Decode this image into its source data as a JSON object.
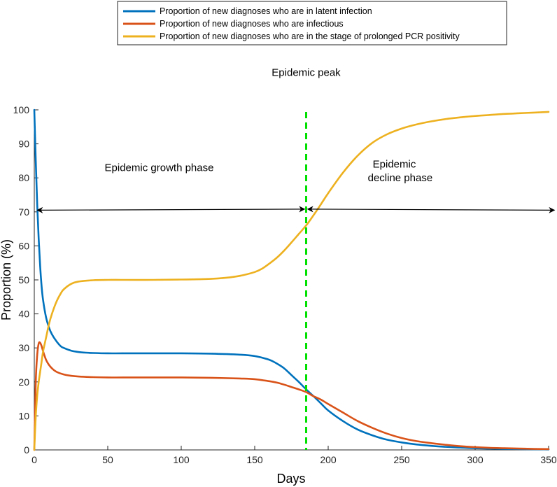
{
  "chart_data": {
    "type": "line",
    "xlabel": "Days",
    "ylabel": "Proportion (%)",
    "xlim": [
      0,
      350
    ],
    "ylim": [
      0,
      100
    ],
    "xticks": [
      0,
      50,
      100,
      150,
      200,
      250,
      300,
      350
    ],
    "yticks": [
      0,
      10,
      20,
      30,
      40,
      50,
      60,
      70,
      80,
      90,
      100
    ],
    "grid": false,
    "legend_position": "top",
    "series": [
      {
        "name": "Proportion of new diagnoses who are in latent infection",
        "color": "#0072BD",
        "x": [
          0,
          1,
          2,
          3,
          4,
          5,
          6,
          8,
          10,
          12,
          15,
          18,
          20,
          25,
          30,
          35,
          40,
          50,
          60,
          80,
          100,
          120,
          140,
          150,
          160,
          165,
          170,
          175,
          180,
          185,
          190,
          195,
          200,
          210,
          220,
          230,
          240,
          250,
          260,
          270,
          280,
          290,
          300,
          310,
          320,
          330,
          340,
          350
        ],
        "y": [
          100,
          85,
          72,
          62,
          54,
          48,
          44,
          39,
          36,
          34,
          32,
          30.5,
          30,
          29.2,
          28.8,
          28.6,
          28.5,
          28.4,
          28.4,
          28.4,
          28.4,
          28.3,
          28.0,
          27.6,
          26.5,
          25.4,
          24.0,
          22.0,
          20.0,
          17.8,
          15.8,
          13.7,
          11.6,
          8.5,
          6.0,
          4.3,
          3.0,
          2.2,
          1.6,
          1.2,
          0.9,
          0.7,
          0.5,
          0.4,
          0.3,
          0.25,
          0.2,
          0.15
        ]
      },
      {
        "name": "Proportion of new diagnoses who are infectious",
        "color": "#D95319",
        "x": [
          0,
          1,
          2,
          3,
          4,
          5,
          6,
          8,
          10,
          12,
          15,
          20,
          25,
          30,
          40,
          50,
          60,
          80,
          100,
          120,
          140,
          150,
          160,
          165,
          170,
          175,
          180,
          185,
          190,
          195,
          200,
          210,
          220,
          230,
          240,
          250,
          260,
          270,
          280,
          290,
          300,
          310,
          320,
          330,
          340,
          350
        ],
        "y": [
          0,
          20,
          28,
          31.3,
          31.5,
          30.5,
          29,
          26.5,
          25,
          24,
          23,
          22.2,
          21.8,
          21.6,
          21.4,
          21.3,
          21.3,
          21.3,
          21.3,
          21.2,
          21.0,
          20.8,
          20.2,
          19.8,
          19.2,
          18.5,
          17.8,
          17.0,
          15.8,
          14.8,
          13.5,
          11.0,
          8.5,
          6.5,
          4.8,
          3.5,
          2.6,
          2.0,
          1.5,
          1.1,
          0.8,
          0.6,
          0.5,
          0.4,
          0.3,
          0.25
        ]
      },
      {
        "name": "Proportion of new diagnoses who are in the stage of prolonged PCR positivity",
        "color": "#EDB120",
        "x": [
          0,
          1,
          2,
          3,
          4,
          5,
          6,
          8,
          10,
          12,
          15,
          18,
          20,
          25,
          30,
          40,
          50,
          60,
          80,
          100,
          120,
          130,
          140,
          150,
          155,
          160,
          165,
          170,
          175,
          180,
          185,
          190,
          195,
          200,
          210,
          220,
          230,
          240,
          250,
          260,
          270,
          280,
          290,
          300,
          310,
          320,
          330,
          340,
          350
        ],
        "y": [
          0,
          10,
          16,
          20,
          23,
          26,
          29,
          33,
          37,
          40,
          43.5,
          46,
          47.2,
          48.8,
          49.5,
          49.9,
          50,
          50,
          50,
          50.1,
          50.3,
          50.6,
          51.2,
          52.3,
          53.3,
          54.8,
          56.5,
          58.6,
          61.0,
          63.5,
          66.0,
          69.0,
          72.2,
          75.5,
          81.5,
          86.5,
          90.3,
          92.8,
          94.5,
          95.7,
          96.6,
          97.3,
          97.8,
          98.2,
          98.5,
          98.8,
          99.0,
          99.2,
          99.4
        ]
      }
    ],
    "vertical_line": {
      "x": 185,
      "color": "#00E000",
      "style": "dashed"
    },
    "annotations": [
      {
        "name": "peak-label",
        "text": "Epidemic peak",
        "x": 185,
        "y": 110
      },
      {
        "name": "growth-label",
        "text": "Epidemic growth phase",
        "x": 85,
        "y": 82
      },
      {
        "name": "decline-label-line1",
        "text": "Epidemic",
        "x": 245,
        "y": 83
      },
      {
        "name": "decline-label-line2",
        "text": "decline phase",
        "x": 249,
        "y": 79
      }
    ],
    "arrows": [
      {
        "name": "growth-arrow",
        "x0": 2,
        "x1": 184,
        "y0": 70.5,
        "y1": 70.8
      },
      {
        "name": "decline-arrow",
        "x0": 186,
        "x1": 354,
        "y0": 70.8,
        "y1": 70.5
      }
    ]
  }
}
